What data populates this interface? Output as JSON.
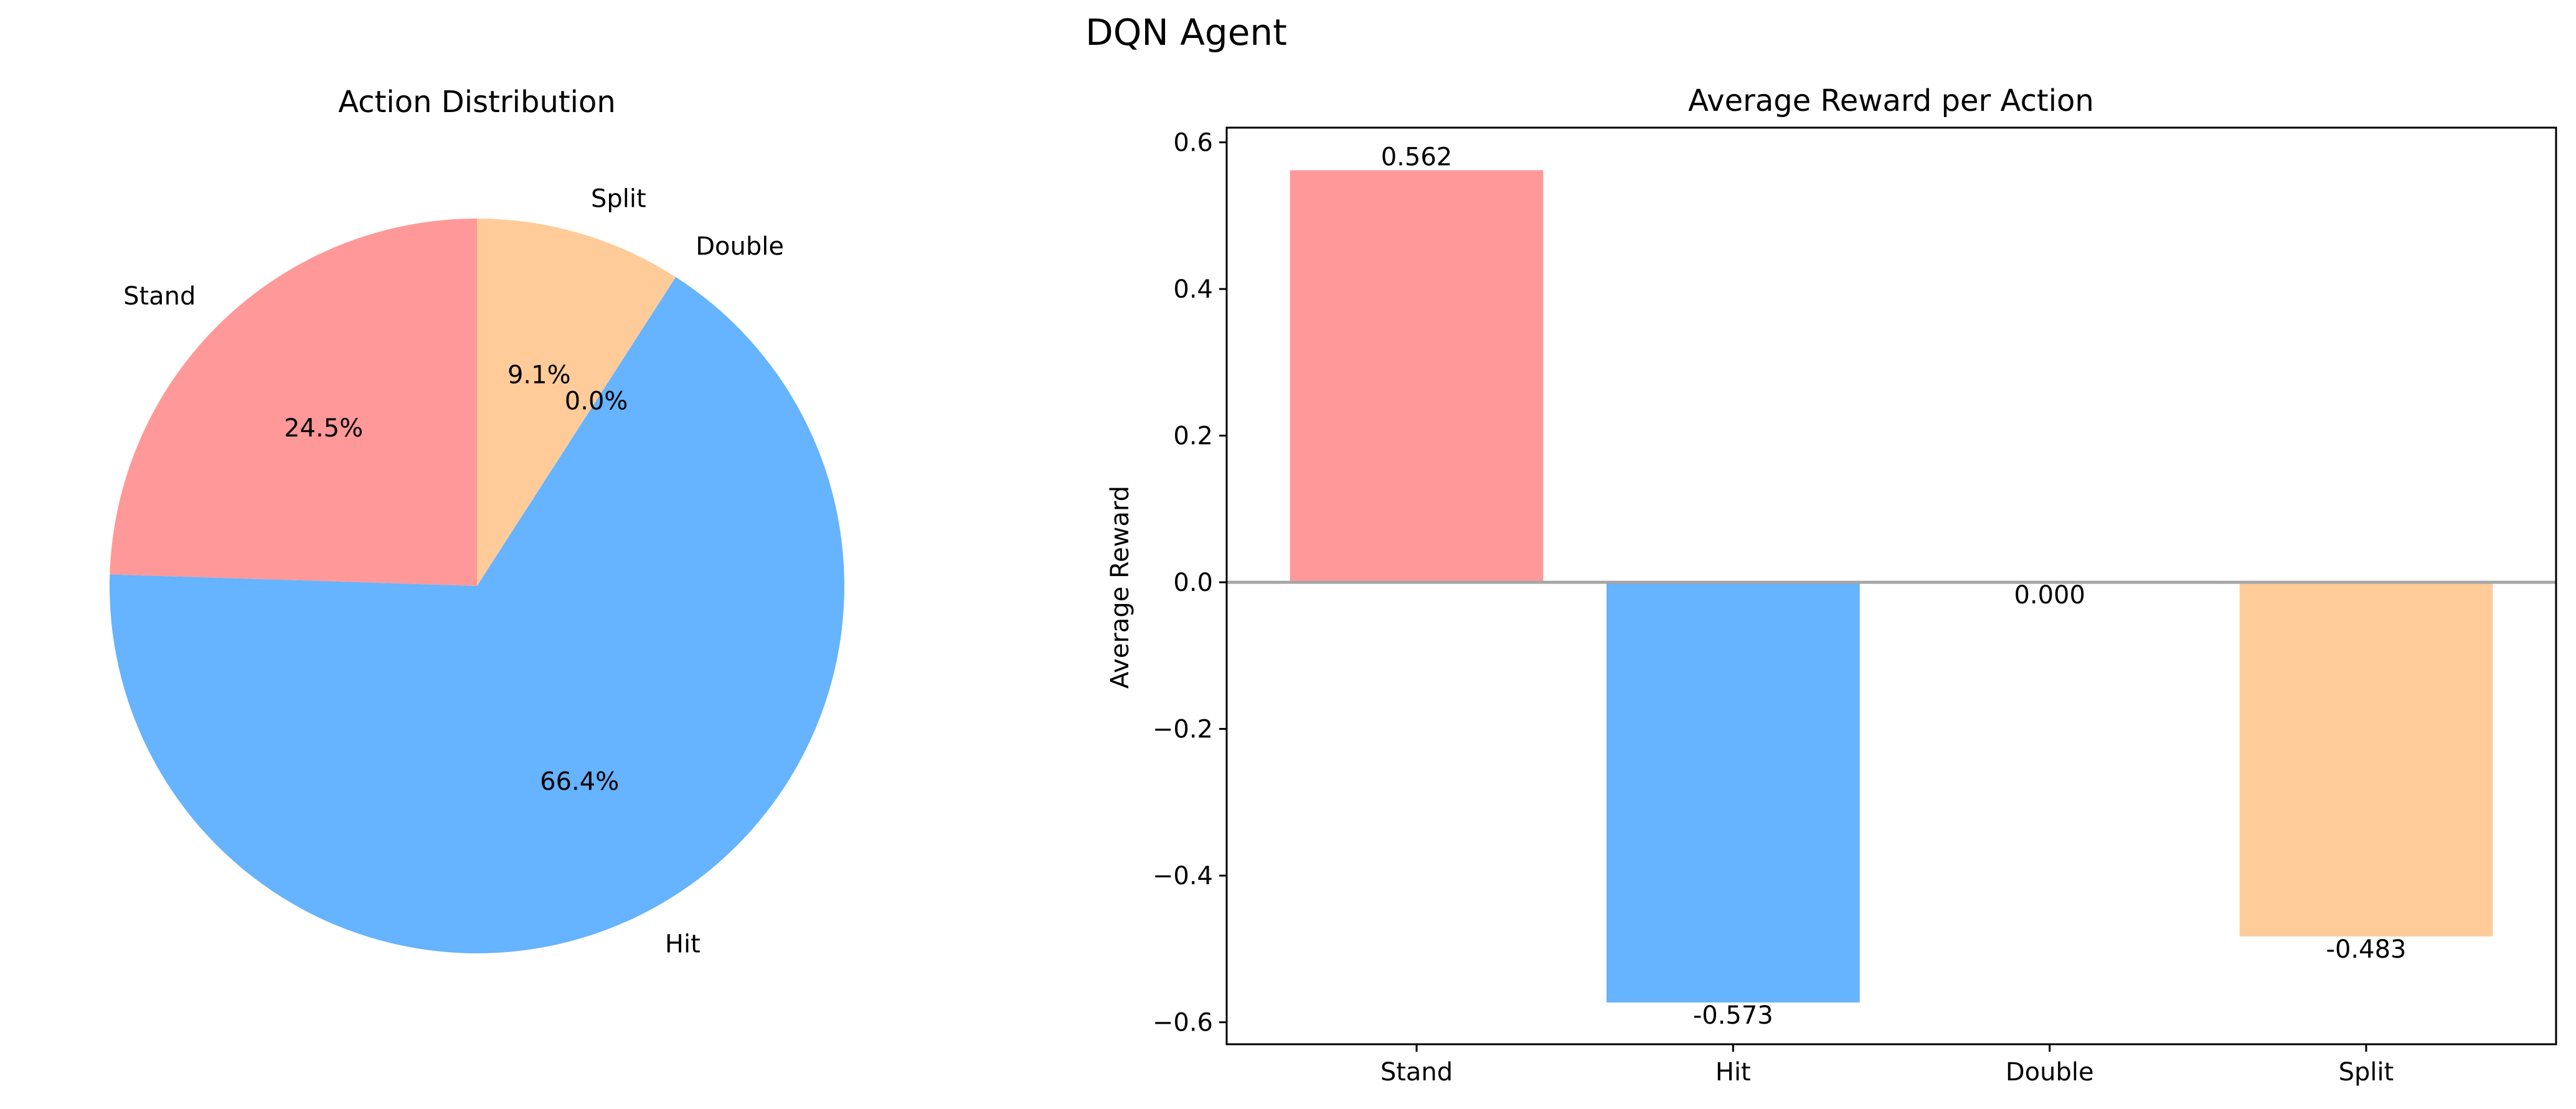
{
  "figure": {
    "title": "DQN Agent"
  },
  "chart_data": [
    {
      "type": "pie",
      "title": "Action Distribution",
      "labels": [
        "Stand",
        "Hit",
        "Double",
        "Split"
      ],
      "values": [
        24.5,
        66.4,
        0.0,
        9.1
      ],
      "value_labels": [
        "24.5%",
        "66.4%",
        "0.0%",
        "9.1%"
      ],
      "colors": [
        "#ff9999",
        "#66b3ff",
        "#99ff99",
        "#ffcc99"
      ],
      "start_angle": 90,
      "direction": "counterclockwise"
    },
    {
      "type": "bar",
      "title": "Average Reward per Action",
      "xlabel": "",
      "ylabel": "Average Reward",
      "categories": [
        "Stand",
        "Hit",
        "Double",
        "Split"
      ],
      "values": [
        0.562,
        -0.573,
        0.0,
        -0.483
      ],
      "value_labels": [
        "0.562",
        "-0.573",
        "0.000",
        "-0.483"
      ],
      "colors": [
        "#ff9999",
        "#66b3ff",
        "#99ff99",
        "#ffcc99"
      ],
      "ylim": [
        -0.63,
        0.62
      ],
      "yticks": [
        -0.6,
        -0.4,
        -0.2,
        0.0,
        0.2,
        0.4,
        0.6
      ],
      "ytick_labels": [
        "−0.6",
        "−0.4",
        "−0.2",
        "0.0",
        "0.2",
        "0.4",
        "0.6"
      ],
      "zero_line": true,
      "grid": false
    }
  ]
}
